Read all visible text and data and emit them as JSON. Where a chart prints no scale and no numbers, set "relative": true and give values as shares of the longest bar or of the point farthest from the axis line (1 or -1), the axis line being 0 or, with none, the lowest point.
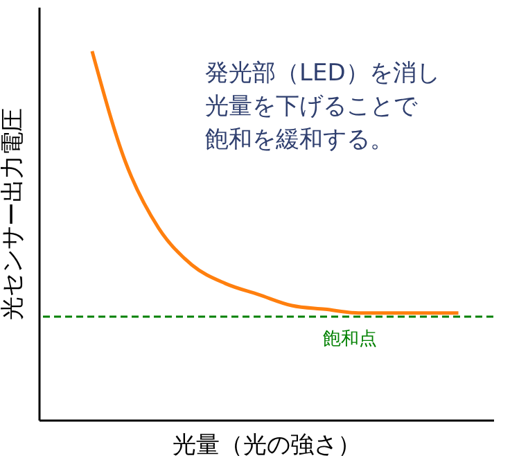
{
  "chart_data": {
    "type": "line",
    "relative": true,
    "tick_labels": false,
    "grid": false,
    "marker": "none",
    "line_style": "solid",
    "xlabel": "光量（光の強さ）",
    "ylabel": "光センサー出力電圧",
    "categories": [
      null,
      null,
      null,
      null,
      null,
      null,
      null,
      null,
      null,
      null,
      null,
      null
    ],
    "series": [
      {
        "color": "#ff7f0e",
        "values": [
          1,
          0.7,
          0.52,
          0.42,
          0.37,
          0.34,
          0.31,
          0.3,
          0.29,
          0.29,
          0.29,
          0.29
        ]
      }
    ],
    "ref_lines": [
      {
        "axis": "y",
        "value": 0.28,
        "label": "飽和点",
        "color": "#008000",
        "line_style": "dashed"
      }
    ],
    "annotations": [
      "発光部（LED）を消し",
      "光量を下げることで",
      "飽和を緩和する。"
    ]
  }
}
